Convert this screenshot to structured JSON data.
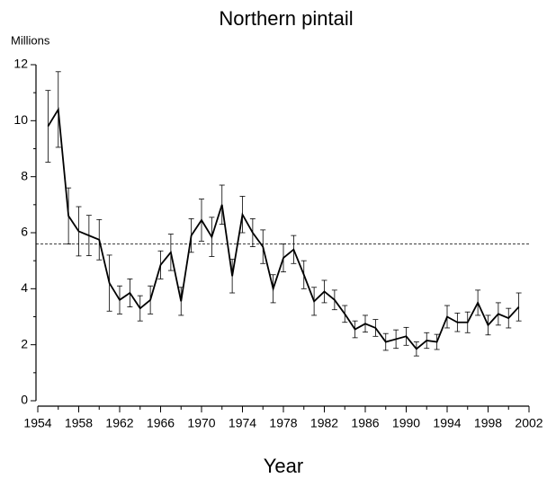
{
  "chart_data": {
    "type": "line",
    "title": "Northern pintail",
    "ylabel": "Millions",
    "xlabel": "Year",
    "x": [
      1955,
      1956,
      1957,
      1958,
      1959,
      1960,
      1961,
      1962,
      1963,
      1964,
      1965,
      1966,
      1967,
      1968,
      1969,
      1970,
      1971,
      1972,
      1973,
      1974,
      1975,
      1976,
      1977,
      1978,
      1979,
      1980,
      1981,
      1982,
      1983,
      1984,
      1985,
      1986,
      1987,
      1988,
      1989,
      1990,
      1991,
      1992,
      1993,
      1994,
      1995,
      1996,
      1997,
      1998,
      1999,
      2000,
      2001
    ],
    "series": [
      {
        "name": "Northern pintail",
        "color": "#000000",
        "values": [
          9.8,
          10.4,
          6.6,
          6.05,
          5.9,
          5.75,
          4.2,
          3.6,
          3.85,
          3.3,
          3.6,
          4.85,
          5.3,
          3.55,
          5.9,
          6.45,
          5.85,
          7.0,
          4.45,
          6.65,
          6.0,
          5.5,
          4.0,
          5.1,
          5.4,
          4.5,
          3.55,
          3.9,
          3.6,
          3.1,
          2.55,
          2.75,
          2.6,
          2.1,
          2.2,
          2.3,
          1.85,
          2.15,
          2.1,
          3.0,
          2.8,
          2.8,
          3.5,
          2.7,
          3.1,
          2.95,
          3.35
        ],
        "errors": [
          1.28,
          1.35,
          1.0,
          0.88,
          0.72,
          0.72,
          1.0,
          0.5,
          0.5,
          0.45,
          0.5,
          0.5,
          0.65,
          0.5,
          0.6,
          0.75,
          0.7,
          0.7,
          0.6,
          0.65,
          0.5,
          0.6,
          0.5,
          0.5,
          0.5,
          0.5,
          0.5,
          0.4,
          0.35,
          0.3,
          0.3,
          0.3,
          0.3,
          0.3,
          0.33,
          0.32,
          0.25,
          0.28,
          0.27,
          0.4,
          0.33,
          0.37,
          0.45,
          0.35,
          0.4,
          0.35,
          0.5
        ]
      }
    ],
    "reference_line": 5.6,
    "xlim": [
      1954,
      2002
    ],
    "xticks": [
      1954,
      1958,
      1962,
      1966,
      1970,
      1974,
      1978,
      1982,
      1986,
      1990,
      1994,
      1998,
      2002
    ],
    "xminorticks": [
      1956,
      1960,
      1964,
      1968,
      1972,
      1976,
      1980,
      1984,
      1988,
      1992,
      1996,
      2000
    ],
    "ylim": [
      0,
      12
    ],
    "yticks": [
      0,
      2,
      4,
      6,
      8,
      10,
      12
    ],
    "yminorticks": [
      1,
      3,
      5,
      7,
      9,
      11
    ]
  }
}
